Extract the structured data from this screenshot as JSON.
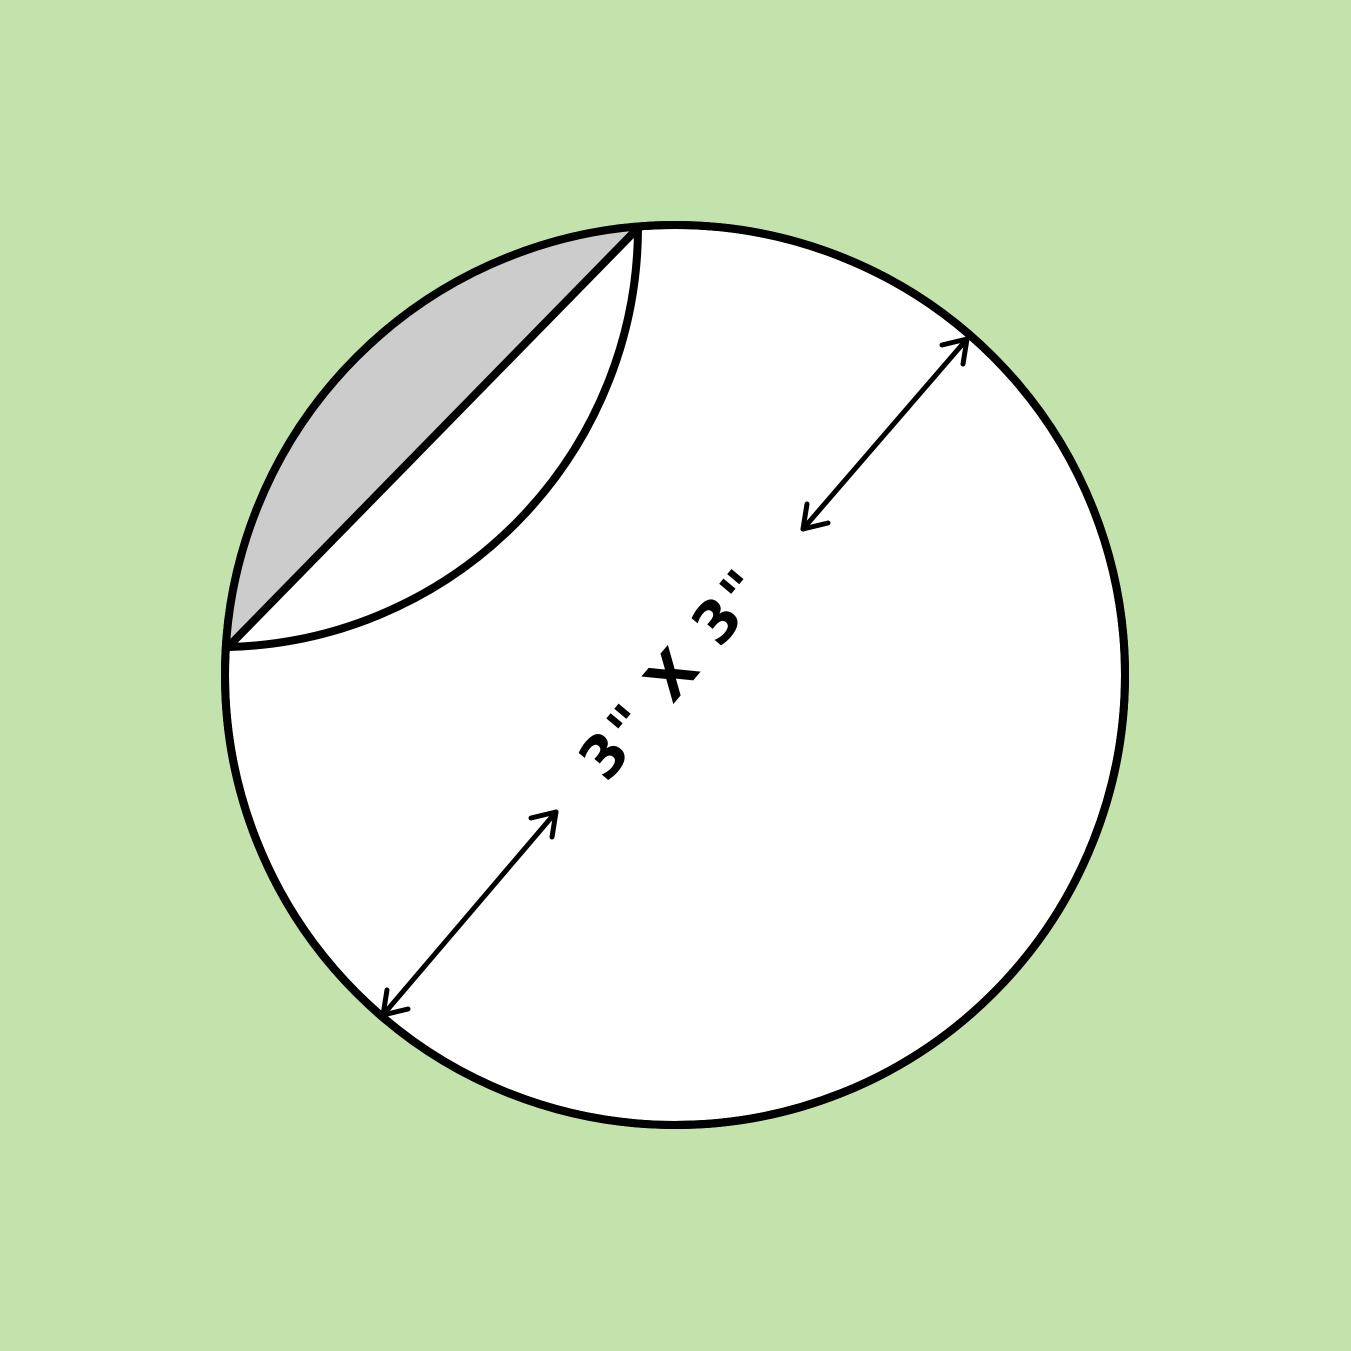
{
  "diagram": {
    "dimension_label": "3\" X 3\""
  },
  "colors": {
    "background": "#c4e2ac",
    "circle_fill": "#ffffff",
    "shaded_segment": "#cccccc",
    "stroke": "#000000"
  }
}
